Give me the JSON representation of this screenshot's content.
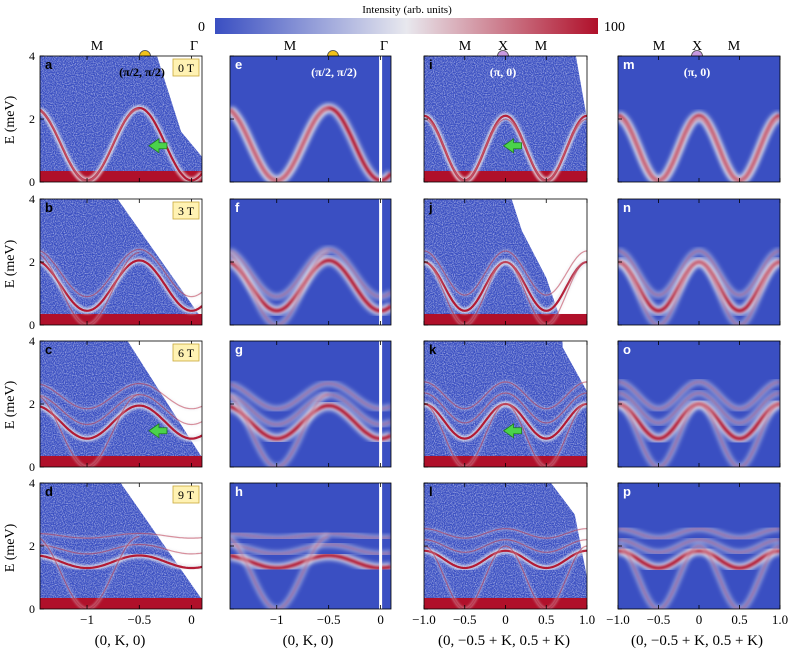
{
  "colorbar": {
    "label": "Intensity (arb. units)",
    "min_label": "0",
    "max_label": "100",
    "colors": [
      "#3a4fc2",
      "#e8e8ee",
      "#b0102a"
    ]
  },
  "top_labels": {
    "col1": [
      "M",
      "Γ"
    ],
    "col2": [
      "M",
      "Γ"
    ],
    "col3": [
      "M",
      "X",
      "M"
    ],
    "col4": [
      "M",
      "X",
      "M"
    ]
  },
  "point_labels": {
    "pi2": "(π/2, π/2)",
    "pi0": "(π, 0)"
  },
  "marker_colors": {
    "pi2": "#f2c21b",
    "pi0": "#c99ae0"
  },
  "ylabel": "E (meV)",
  "xlabels": {
    "col1": "(0, K, 0)",
    "col2": "(0, K, 0)",
    "col3": "(0, −0.5 + K, 0.5 + K)",
    "col4": "(0, −0.5 + K, 0.5 + K)"
  },
  "field_labels": [
    "0 T",
    "3 T",
    "6 T",
    "9 T"
  ],
  "panel_letters": [
    [
      "a",
      "e",
      "i",
      "m"
    ],
    [
      "b",
      "f",
      "j",
      "n"
    ],
    [
      "c",
      "g",
      "k",
      "o"
    ],
    [
      "d",
      "h",
      "l",
      "p"
    ]
  ],
  "chart_data": [
    {
      "type": "heatmap",
      "id": "left_columns_kspace",
      "panels": [
        "a",
        "b",
        "c",
        "d",
        "e",
        "f",
        "g",
        "h"
      ],
      "xlabel": "(0, K, 0)",
      "ylabel": "E (meV)",
      "xlim": [
        -1.45,
        0.1
      ],
      "ylim": [
        0,
        4
      ],
      "xticks": [
        -1,
        -0.5,
        0
      ],
      "xticklabels": [
        "−1",
        "−0.5",
        "0"
      ],
      "yticks": [
        0,
        2,
        4
      ],
      "dispersion_minimum_meV": [
        0.05,
        0.45,
        0.9,
        1.3
      ],
      "dispersion_maximum_meV": [
        2.35,
        2.05,
        1.95,
        1.7
      ],
      "fields_T": [
        0,
        3,
        6,
        9
      ]
    },
    {
      "type": "heatmap",
      "id": "right_columns_kspace",
      "panels": [
        "i",
        "j",
        "k",
        "l",
        "m",
        "n",
        "o",
        "p"
      ],
      "xlabel": "(0, −0.5 + K, 0.5 + K)",
      "ylabel": "E (meV)",
      "xlim": [
        -1.0,
        1.0
      ],
      "ylim": [
        0,
        4
      ],
      "xticks": [
        -1,
        -0.5,
        0,
        0.5,
        1
      ],
      "xticklabels": [
        "−1.0",
        "−0.5",
        "0",
        "0.5",
        "1.0"
      ],
      "yticks": [
        0,
        2,
        4
      ],
      "fields_T": [
        0,
        3,
        6,
        9
      ]
    }
  ]
}
